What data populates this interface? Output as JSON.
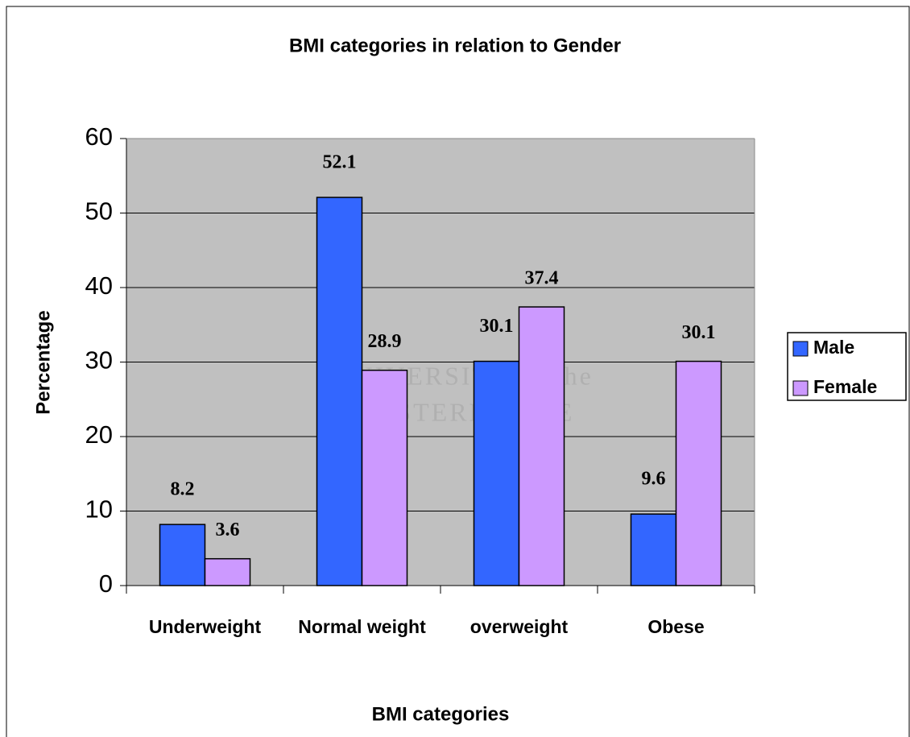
{
  "chart_data": {
    "type": "bar",
    "title": "BMI categories in relation to Gender",
    "x_label": "BMI categories",
    "y_label": "Percentage",
    "watermark": [
      "UNIVERSITY of the",
      "WESTERN CAPE"
    ],
    "categories": [
      "Underweight",
      "Normal weight",
      "overweight",
      "Obese"
    ],
    "series": [
      {
        "name": "Male",
        "color": "#3366ff",
        "values": [
          8.2,
          52.1,
          30.1,
          9.6
        ]
      },
      {
        "name": "Female",
        "color": "#cc99ff",
        "values": [
          3.6,
          28.9,
          37.4,
          30.1
        ]
      }
    ],
    "ylim": [
      0,
      60
    ],
    "yticks": [
      0,
      10,
      20,
      30,
      40,
      50,
      60
    ],
    "grid": true,
    "legend": "right",
    "plot_background": "#c0c0c0"
  }
}
